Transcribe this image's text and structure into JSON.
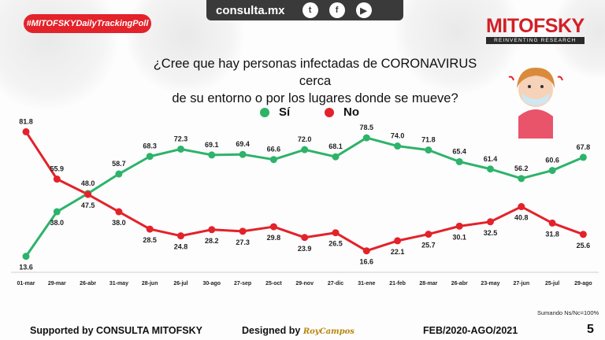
{
  "header": {
    "site": "consulta.mx",
    "social": [
      "twitter-icon",
      "facebook-icon",
      "youtube-icon"
    ],
    "hashtag": "#MITOFSKYDailyTrackingPoll",
    "brand": "MITOFSKY",
    "brand_tagline": "REINVENTING RESEARCH"
  },
  "question_line1": "¿Cree que hay personas infectadas de CORONAVIRUS cerca",
  "question_line2": "de su entorno o por los lugares donde se mueve?",
  "note": "Sumando Ns/Nc=100%",
  "footer": {
    "supported": "Supported by   CONSULTA   MITOFSKY",
    "designed": "Designed by",
    "designer": "RoyCampos",
    "period": "FEB/2020-AGO/2021",
    "page": "5"
  },
  "colors": {
    "si": "#2db36a",
    "no": "#e3222a",
    "accent": "#d31f26"
  },
  "chart_data": {
    "type": "line",
    "title": "¿Cree que hay personas infectadas de CORONAVIRUS cerca de su entorno o por los lugares donde se mueve?",
    "categories": [
      "01-mar",
      "29-mar",
      "26-abr",
      "31-may",
      "28-jun",
      "26-jul",
      "30-ago",
      "27-sep",
      "25-oct",
      "29-nov",
      "27-dic",
      "31-ene",
      "21-feb",
      "28-mar",
      "26-abr",
      "23-may",
      "27-jun",
      "25-jul",
      "29-ago"
    ],
    "series": [
      {
        "name": "Sí",
        "color": "#2db36a",
        "values": [
          13.6,
          38.0,
          48.0,
          58.7,
          68.3,
          72.3,
          69.1,
          69.4,
          66.6,
          72.0,
          68.1,
          78.5,
          74.0,
          71.8,
          65.4,
          61.4,
          56.2,
          60.6,
          67.8
        ]
      },
      {
        "name": "No",
        "color": "#e3222a",
        "values": [
          81.8,
          55.9,
          47.5,
          38.0,
          28.5,
          24.8,
          28.2,
          27.3,
          29.8,
          23.9,
          26.5,
          16.6,
          22.1,
          25.7,
          30.1,
          32.5,
          40.8,
          31.8,
          25.6
        ]
      }
    ],
    "ylim": [
      10,
      85
    ],
    "xlabel": "",
    "ylabel": "",
    "legend": "top-center"
  }
}
